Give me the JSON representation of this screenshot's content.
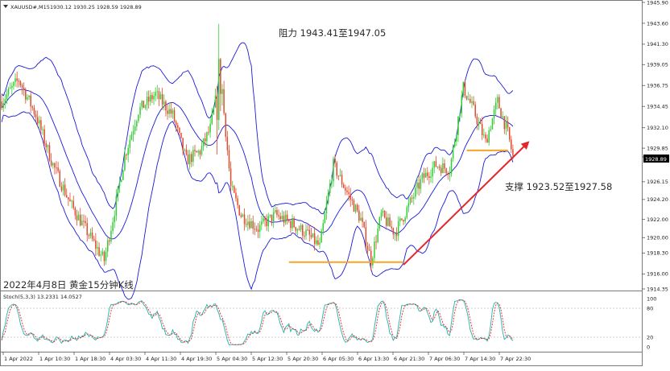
{
  "header": {
    "symbol": "XAUUSD#,M15",
    "ohlc": "1930.12 1930.25 1928.59 1928.89"
  },
  "annotations": {
    "resistance": "阻力 1943.41至1947.05",
    "support": "支撑 1923.52至1927.58",
    "caption": "2022年4月8日 黄金15分钟K线"
  },
  "oscillator": {
    "label": "Stoch(5,3,3) 13.2331 14.0527",
    "levels": [
      "100",
      "80",
      "20",
      "0"
    ]
  },
  "colors": {
    "bull": "#32cd32",
    "bear": "#e04a2a",
    "bands": "#1a1adc",
    "trendline": "#e3262b",
    "level_line": "#f5a623",
    "stoch_main": "#20b2aa",
    "stoch_signal": "#e3262b",
    "price_tag_bg": "#000000"
  },
  "chart_data": {
    "type": "candlestick",
    "symbol": "XAUUSD#",
    "timeframe": "M15",
    "price_axis_ticks": [
      "1945.90",
      "1943.60",
      "1941.30",
      "1939.05",
      "1936.75",
      "1934.45",
      "1932.10",
      "1929.85",
      "1928.89",
      "1926.15",
      "1924.20",
      "1922.00",
      "1920.00",
      "1918.30",
      "1916.00",
      "1914.35"
    ],
    "current_price": "1928.89",
    "ylim": [
      1914.35,
      1945.9
    ],
    "time_axis_labels": [
      "1 Apr 2022",
      "1 Apr 10:30",
      "1 Apr 18:30",
      "4 Apr 03:30",
      "4 Apr 11:30",
      "4 Apr 19:30",
      "5 Apr 04:30",
      "5 Apr 12:30",
      "5 Apr 20:30",
      "6 Apr 05:30",
      "6 Apr 13:30",
      "6 Apr 21:30",
      "7 Apr 06:30",
      "7 Apr 14:30",
      "7 Apr 22:30"
    ],
    "candle_count": 300,
    "resistance_zone": [
      1943.41,
      1947.05
    ],
    "support_zone": [
      1923.52,
      1927.58
    ],
    "highlight_levels": [
      1917.3,
      1929.6
    ],
    "trendline": {
      "from": [
        "6 Apr 13:30",
        1917.0
      ],
      "to": [
        "8 Apr",
        1930.5
      ]
    },
    "stochastic": {
      "params": "5,3,3",
      "main": 13.2331,
      "signal": 14.0527,
      "levels": [
        100,
        80,
        20,
        0
      ]
    }
  }
}
